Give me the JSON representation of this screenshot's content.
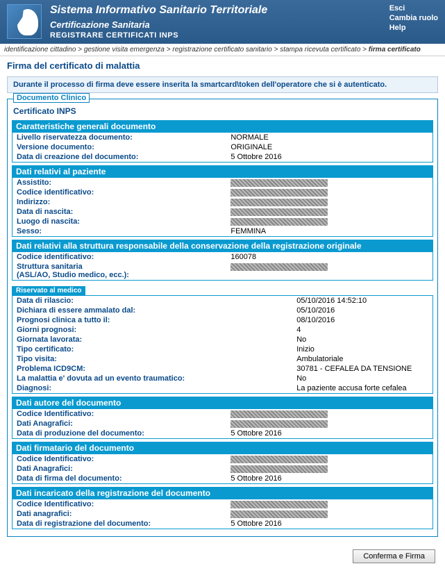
{
  "header": {
    "title": "Sistema Informativo Sanitario Territoriale",
    "subtitle": "Certificazione Sanitaria",
    "module": "REGISTRARE CERTIFICATI INPS",
    "links": {
      "exit": "Esci",
      "change_role": "Cambia ruolo",
      "help": "Help"
    }
  },
  "breadcrumb": {
    "items": [
      "identificazione cittadino",
      "gestione visita emergenza",
      "registrazione certificato sanitario",
      "stampa ricevuta certificato"
    ],
    "current": "firma certificato"
  },
  "page": {
    "title": "Firma del certificato di malattia",
    "notice": "Durante il processo di firma deve essere inserita la smartcard\\token dell'operatore che si è autenticato.",
    "doc_label": "Documento Clinico",
    "cert_title": "Certificato INPS"
  },
  "sections": {
    "general": {
      "title": "Caratteristiche generali documento",
      "rows": [
        {
          "label": "Livello riservatezza documento:",
          "value": "NORMALE"
        },
        {
          "label": "Versione documento:",
          "value": "ORIGINALE"
        },
        {
          "label": "Data di creazione del documento:",
          "value": "5 Ottobre 2016"
        }
      ]
    },
    "patient": {
      "title": "Dati relativi al paziente",
      "rows": [
        {
          "label": "Assistito:",
          "redacted": true
        },
        {
          "label": "Codice identificativo:",
          "redacted": true
        },
        {
          "label": "Indirizzo:",
          "redacted": true
        },
        {
          "label": "Data di nascita:",
          "redacted": true
        },
        {
          "label": "Luogo di nascita:",
          "redacted": true
        },
        {
          "label": "Sesso:",
          "value": "FEMMINA"
        }
      ]
    },
    "structure": {
      "title": "Dati relativi alla struttura responsabile della conservazione della registrazione originale",
      "rows": [
        {
          "label": "Codice identificativo:",
          "value": "160078"
        },
        {
          "label": "Struttura sanitaria\n(ASL/AO, Studio medico, ecc.):",
          "redacted": true
        }
      ]
    },
    "medical": {
      "tab": "Riservato al medico",
      "rows": [
        {
          "label": "Data di rilascio:",
          "value": "05/10/2016 14:52:10"
        },
        {
          "label": "Dichiara di essere ammalato dal:",
          "value": "05/10/2016"
        },
        {
          "label": "Prognosi clinica a tutto il:",
          "value": "08/10/2016"
        },
        {
          "label": "Giorni prognosi:",
          "value": "4"
        },
        {
          "label": "Giornata lavorata:",
          "value": "No"
        },
        {
          "label": "Tipo certificato:",
          "value": "Inizio"
        },
        {
          "label": "Tipo visita:",
          "value": "Ambulatoriale"
        },
        {
          "label": "Problema ICD9CM:",
          "value": "30781 - CEFALEA DA TENSIONE"
        },
        {
          "label": "La malattia e' dovuta ad un evento traumatico:",
          "value": "No"
        },
        {
          "label": "Diagnosi:",
          "value": "La paziente accusa forte cefalea"
        }
      ]
    },
    "author": {
      "title": "Dati autore del documento",
      "rows": [
        {
          "label": "Codice Identificativo:",
          "redacted": true
        },
        {
          "label": "Dati Anagrafici:",
          "redacted": true
        },
        {
          "label": "Data di produzione del documento:",
          "value": "5 Ottobre 2016"
        }
      ]
    },
    "signer": {
      "title": "Dati firmatario del documento",
      "rows": [
        {
          "label": "Codice Identificativo:",
          "redacted": true
        },
        {
          "label": "Dati Anagrafici:",
          "redacted": true
        },
        {
          "label": "Data di firma del documento:",
          "value": "5 Ottobre 2016"
        }
      ]
    },
    "registrar": {
      "title": "Dati incaricato della registrazione del documento",
      "rows": [
        {
          "label": "Codice Identificativo:",
          "redacted": true
        },
        {
          "label": "Dati anagrafici:",
          "redacted": true
        },
        {
          "label": "Data di registrazione del documento:",
          "value": "5 Ottobre 2016"
        }
      ]
    }
  },
  "footer": {
    "confirm_btn": "Conferma e Firma"
  }
}
